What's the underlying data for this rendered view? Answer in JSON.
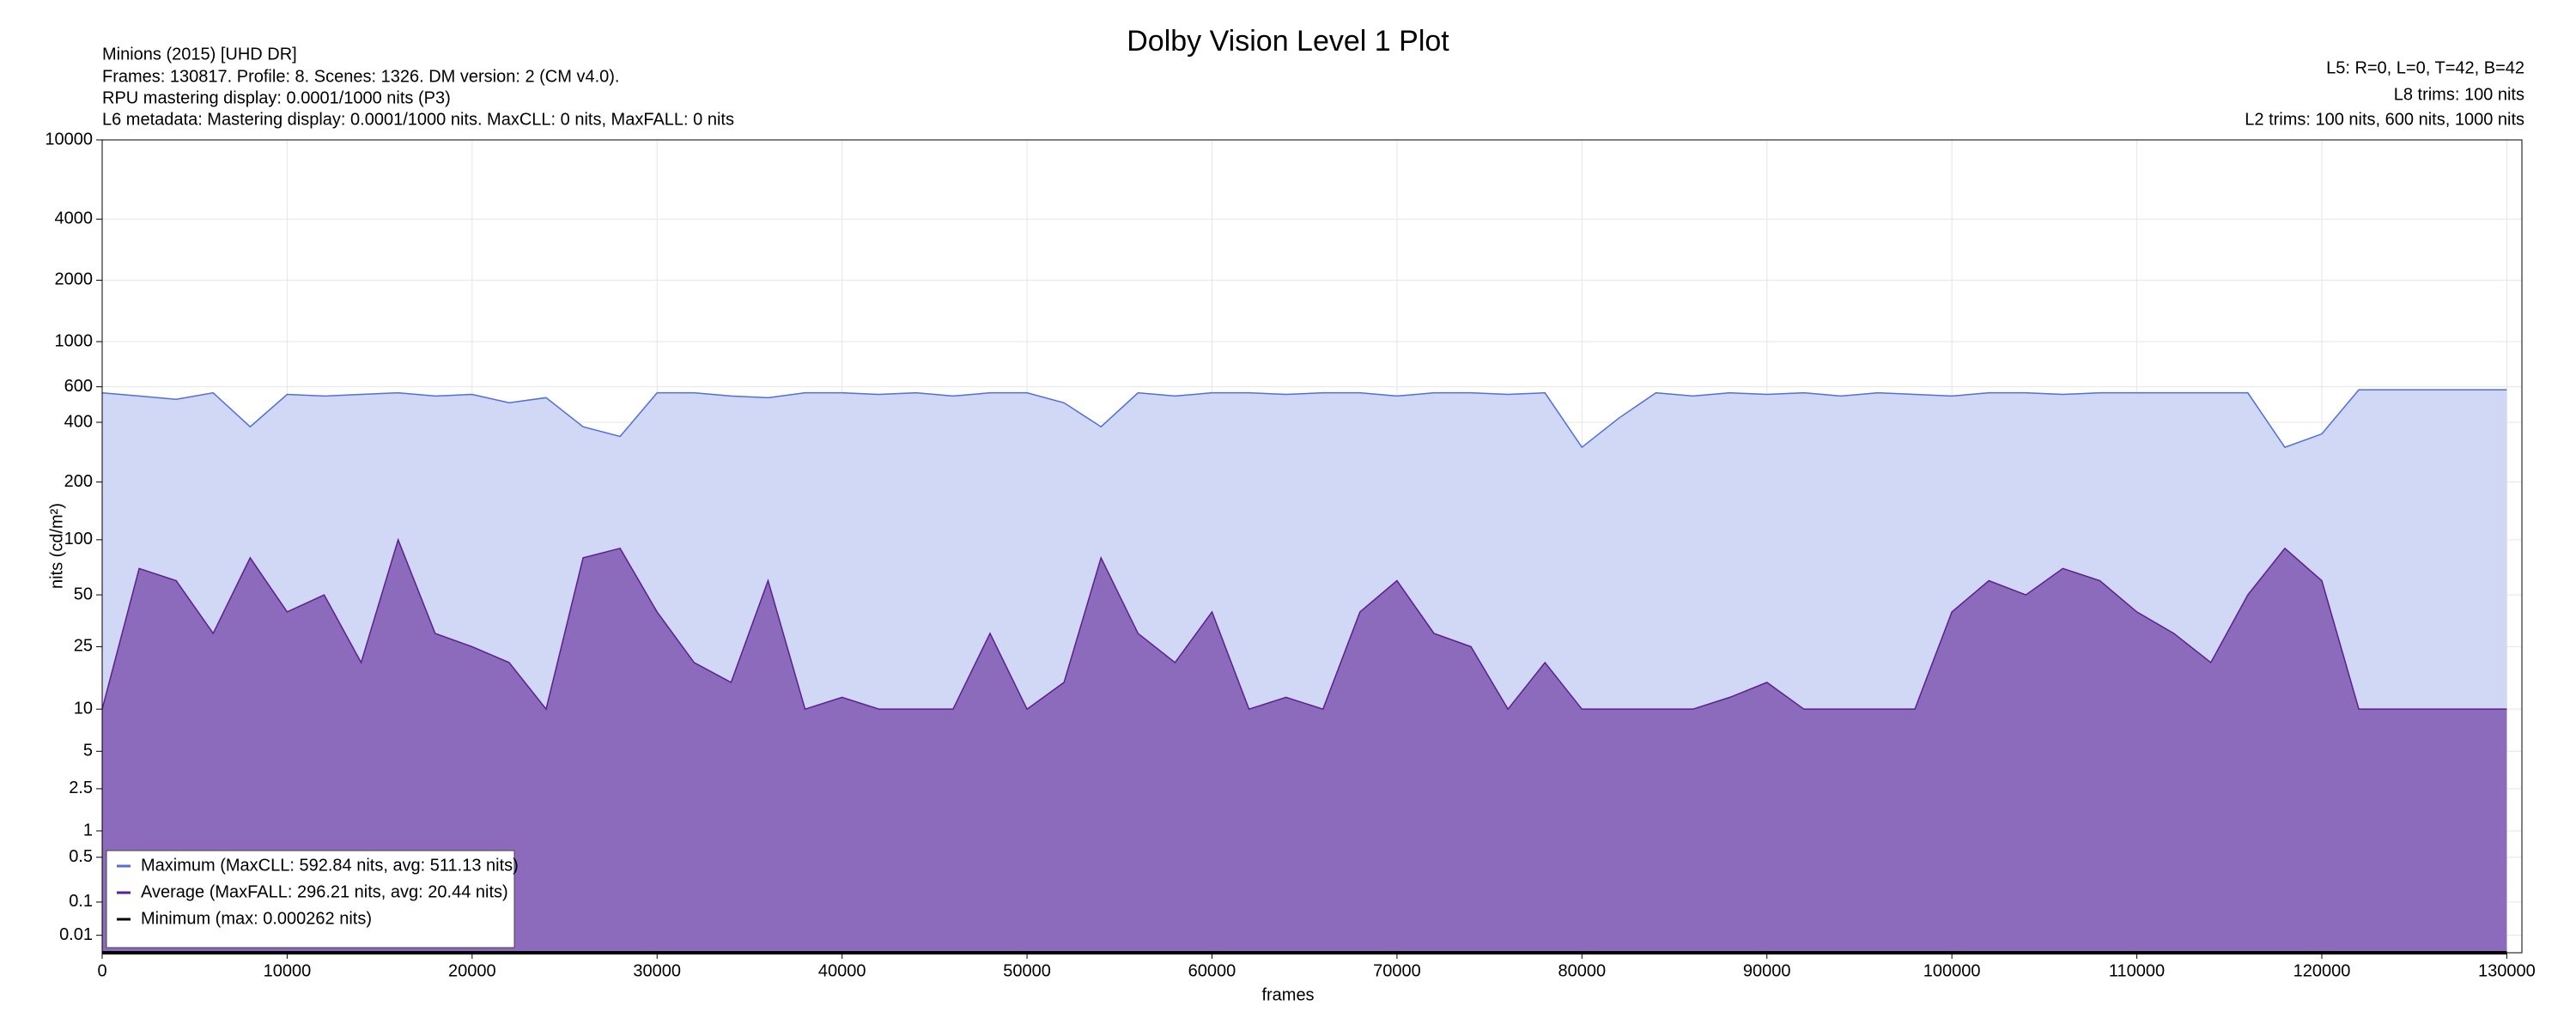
{
  "chart_data": {
    "type": "line",
    "title": "Dolby Vision Level 1 Plot",
    "info_left": [
      "Minions (2015) [UHD DR]",
      "Frames: 130817. Profile: 8. Scenes: 1326. DM version: 2 (CM v4.0).",
      "RPU mastering display: 0.0001/1000 nits  (P3)",
      "L6 metadata: Mastering display: 0.0001/1000 nits. MaxCLL: 0 nits, MaxFALL: 0 nits"
    ],
    "info_right": [
      "L5: R=0, L=0, T=42, B=42",
      "L8 trims: 100 nits",
      "L2 trims: 100 nits, 600 nits, 1000 nits"
    ],
    "xlabel": "frames",
    "ylabel": "nits (cd/m²)",
    "y_scale": "pq",
    "grid": true,
    "legend": "lower left",
    "xlim": [
      0,
      130817
    ],
    "ylim": [
      0,
      10000
    ],
    "xticks": [
      0,
      10000,
      20000,
      30000,
      40000,
      50000,
      60000,
      70000,
      80000,
      90000,
      100000,
      110000,
      120000,
      130000
    ],
    "yticks": [
      0.01,
      0.1,
      0.5,
      1,
      2.5,
      5,
      10,
      25,
      50,
      100,
      200,
      400,
      600,
      1000,
      2000,
      4000,
      10000
    ],
    "x": [
      0,
      2000,
      4000,
      6000,
      8000,
      10000,
      12000,
      14000,
      16000,
      18000,
      20000,
      22000,
      24000,
      26000,
      28000,
      30000,
      32000,
      34000,
      36000,
      38000,
      40000,
      42000,
      44000,
      46000,
      48000,
      50000,
      52000,
      54000,
      56000,
      58000,
      60000,
      62000,
      64000,
      66000,
      68000,
      70000,
      72000,
      74000,
      76000,
      78000,
      80000,
      82000,
      84000,
      86000,
      88000,
      90000,
      92000,
      94000,
      96000,
      98000,
      100000,
      102000,
      104000,
      106000,
      108000,
      110000,
      112000,
      114000,
      116000,
      118000,
      120000,
      122000,
      124000,
      126000,
      128000,
      130000
    ],
    "series": [
      {
        "name": "Maximum (MaxCLL: 592.84 nits, avg: 511.13 nits)",
        "color": "#4f6fdb",
        "fill": "#d0d8f6",
        "values": [
          560,
          540,
          520,
          560,
          380,
          550,
          540,
          550,
          560,
          540,
          550,
          500,
          530,
          380,
          340,
          560,
          560,
          540,
          530,
          560,
          560,
          550,
          560,
          540,
          560,
          560,
          500,
          380,
          560,
          540,
          560,
          560,
          550,
          560,
          560,
          540,
          560,
          560,
          550,
          560,
          300,
          420,
          560,
          540,
          560,
          550,
          560,
          540,
          560,
          550,
          540,
          560,
          560,
          550,
          560,
          560,
          560,
          560,
          560,
          300,
          350,
          580,
          580,
          580,
          580,
          580
        ]
      },
      {
        "name": "Average (MaxFALL: 296.21 nits, avg: 20.44 nits)",
        "color": "#5b1f8f",
        "fill": "#8c6bbd",
        "values": [
          10,
          70,
          60,
          30,
          80,
          40,
          50,
          20,
          100,
          30,
          25,
          20,
          10,
          80,
          90,
          40,
          20,
          15,
          60,
          10,
          12,
          10,
          10,
          10,
          30,
          10,
          15,
          80,
          30,
          20,
          40,
          10,
          12,
          10,
          40,
          60,
          30,
          25,
          10,
          20,
          10,
          10,
          10,
          10,
          12,
          15,
          10,
          10,
          10,
          10,
          40,
          60,
          50,
          70,
          60,
          40,
          30,
          20,
          50,
          90,
          60,
          10,
          10,
          10,
          10,
          10
        ]
      },
      {
        "name": "Minimum (max: 0.000262 nits)",
        "color": "#000000",
        "values": [
          0,
          0,
          0,
          0,
          0,
          0,
          0,
          0,
          0,
          0,
          0,
          0,
          0,
          0,
          0,
          0,
          0,
          0,
          0,
          0,
          0,
          0,
          0,
          0,
          0,
          0,
          0,
          0,
          0,
          0,
          0,
          0,
          0,
          0,
          0,
          0,
          0,
          0,
          0,
          0,
          0,
          0,
          0,
          0,
          0,
          0,
          0,
          0,
          0,
          0,
          0,
          0,
          0,
          0,
          0,
          0,
          0,
          0,
          0,
          0,
          0,
          0,
          0,
          0,
          0,
          0
        ]
      }
    ]
  }
}
